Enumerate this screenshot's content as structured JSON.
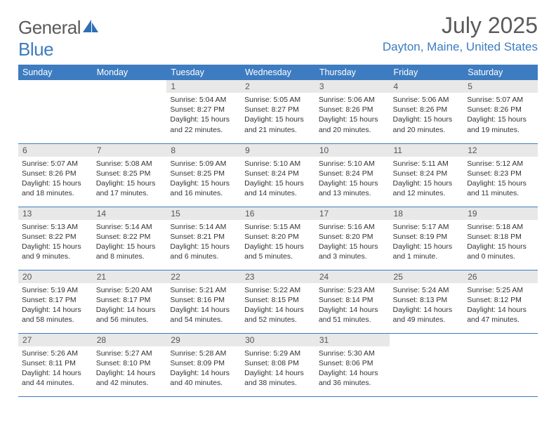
{
  "logo": {
    "text_left": "General",
    "text_right": "Blue"
  },
  "title": "July 2025",
  "location": "Dayton, Maine, United States",
  "columns": [
    "Sunday",
    "Monday",
    "Tuesday",
    "Wednesday",
    "Thursday",
    "Friday",
    "Saturday"
  ],
  "colors": {
    "header_bg": "#3d7cc0",
    "header_fg": "#ffffff",
    "daynum_bg": "#e8e8e8",
    "rule": "#3d7cc0",
    "title_fg": "#5a5a5a",
    "location_fg": "#3d7cc0"
  },
  "blanks_before": 2,
  "days": [
    {
      "n": 1,
      "sr": "5:04 AM",
      "ss": "8:27 PM",
      "dl": "15 hours and 22 minutes."
    },
    {
      "n": 2,
      "sr": "5:05 AM",
      "ss": "8:27 PM",
      "dl": "15 hours and 21 minutes."
    },
    {
      "n": 3,
      "sr": "5:06 AM",
      "ss": "8:26 PM",
      "dl": "15 hours and 20 minutes."
    },
    {
      "n": 4,
      "sr": "5:06 AM",
      "ss": "8:26 PM",
      "dl": "15 hours and 20 minutes."
    },
    {
      "n": 5,
      "sr": "5:07 AM",
      "ss": "8:26 PM",
      "dl": "15 hours and 19 minutes."
    },
    {
      "n": 6,
      "sr": "5:07 AM",
      "ss": "8:26 PM",
      "dl": "15 hours and 18 minutes."
    },
    {
      "n": 7,
      "sr": "5:08 AM",
      "ss": "8:25 PM",
      "dl": "15 hours and 17 minutes."
    },
    {
      "n": 8,
      "sr": "5:09 AM",
      "ss": "8:25 PM",
      "dl": "15 hours and 16 minutes."
    },
    {
      "n": 9,
      "sr": "5:10 AM",
      "ss": "8:24 PM",
      "dl": "15 hours and 14 minutes."
    },
    {
      "n": 10,
      "sr": "5:10 AM",
      "ss": "8:24 PM",
      "dl": "15 hours and 13 minutes."
    },
    {
      "n": 11,
      "sr": "5:11 AM",
      "ss": "8:24 PM",
      "dl": "15 hours and 12 minutes."
    },
    {
      "n": 12,
      "sr": "5:12 AM",
      "ss": "8:23 PM",
      "dl": "15 hours and 11 minutes."
    },
    {
      "n": 13,
      "sr": "5:13 AM",
      "ss": "8:22 PM",
      "dl": "15 hours and 9 minutes."
    },
    {
      "n": 14,
      "sr": "5:14 AM",
      "ss": "8:22 PM",
      "dl": "15 hours and 8 minutes."
    },
    {
      "n": 15,
      "sr": "5:14 AM",
      "ss": "8:21 PM",
      "dl": "15 hours and 6 minutes."
    },
    {
      "n": 16,
      "sr": "5:15 AM",
      "ss": "8:20 PM",
      "dl": "15 hours and 5 minutes."
    },
    {
      "n": 17,
      "sr": "5:16 AM",
      "ss": "8:20 PM",
      "dl": "15 hours and 3 minutes."
    },
    {
      "n": 18,
      "sr": "5:17 AM",
      "ss": "8:19 PM",
      "dl": "15 hours and 1 minute."
    },
    {
      "n": 19,
      "sr": "5:18 AM",
      "ss": "8:18 PM",
      "dl": "15 hours and 0 minutes."
    },
    {
      "n": 20,
      "sr": "5:19 AM",
      "ss": "8:17 PM",
      "dl": "14 hours and 58 minutes."
    },
    {
      "n": 21,
      "sr": "5:20 AM",
      "ss": "8:17 PM",
      "dl": "14 hours and 56 minutes."
    },
    {
      "n": 22,
      "sr": "5:21 AM",
      "ss": "8:16 PM",
      "dl": "14 hours and 54 minutes."
    },
    {
      "n": 23,
      "sr": "5:22 AM",
      "ss": "8:15 PM",
      "dl": "14 hours and 52 minutes."
    },
    {
      "n": 24,
      "sr": "5:23 AM",
      "ss": "8:14 PM",
      "dl": "14 hours and 51 minutes."
    },
    {
      "n": 25,
      "sr": "5:24 AM",
      "ss": "8:13 PM",
      "dl": "14 hours and 49 minutes."
    },
    {
      "n": 26,
      "sr": "5:25 AM",
      "ss": "8:12 PM",
      "dl": "14 hours and 47 minutes."
    },
    {
      "n": 27,
      "sr": "5:26 AM",
      "ss": "8:11 PM",
      "dl": "14 hours and 44 minutes."
    },
    {
      "n": 28,
      "sr": "5:27 AM",
      "ss": "8:10 PM",
      "dl": "14 hours and 42 minutes."
    },
    {
      "n": 29,
      "sr": "5:28 AM",
      "ss": "8:09 PM",
      "dl": "14 hours and 40 minutes."
    },
    {
      "n": 30,
      "sr": "5:29 AM",
      "ss": "8:08 PM",
      "dl": "14 hours and 38 minutes."
    },
    {
      "n": 31,
      "sr": "5:30 AM",
      "ss": "8:06 PM",
      "dl": "14 hours and 36 minutes."
    }
  ],
  "labels": {
    "sunrise": "Sunrise:",
    "sunset": "Sunset:",
    "daylight": "Daylight:"
  }
}
